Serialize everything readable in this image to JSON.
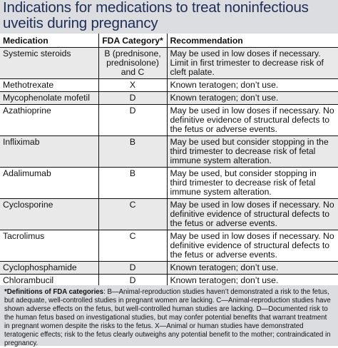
{
  "title": "Indications for medications to treat noninfectious uveitis during pregnancy",
  "table": {
    "headers": [
      "Medication",
      "FDA Category*",
      "Recommendation"
    ],
    "rows": [
      {
        "medication": "Systemic steroids",
        "category": "B (prednisone, prednisolone) and C",
        "recommendation": "May be used in low doses if necessary. Limit in first trimester to decrease risk of cleft palate."
      },
      {
        "medication": "Methotrexate",
        "category": "X",
        "recommendation": "Known teratogen; don’t use."
      },
      {
        "medication": "Mycophenolate mofetil",
        "category": "D",
        "recommendation": "Known teratogen; don’t use."
      },
      {
        "medication": "Azathioprine",
        "category": "D",
        "recommendation": "May be used in low doses if necessary. No definitive evidence of structural defects to the fetus or adverse events."
      },
      {
        "medication": "Infliximab",
        "category": "B",
        "recommendation": "May be used but consider stopping in the third trimester to decrease risk of fetal immune system alteration."
      },
      {
        "medication": "Adalimumab",
        "category": "B",
        "recommendation": "May be used, but consider stopping in third trimester to decrease risk of fetal immune system alteration."
      },
      {
        "medication": "Cyclosporine",
        "category": "C",
        "recommendation": "May be used in low doses if necessary. No definitive evidence of structural defects to the fetus or adverse events."
      },
      {
        "medication": "Tacrolimus",
        "category": "C",
        "recommendation": "May be used in low doses if necessary. No definitive evidence of structural defects to the fetus or adverse events."
      },
      {
        "medication": "Cyclophosphamide",
        "category": "D",
        "recommendation": "Known teratogen; don’t use."
      },
      {
        "medication": "Chlorambucil",
        "category": "D",
        "recommendation": "Known teratogen; don’t use."
      }
    ]
  },
  "footnote": {
    "heading": "*Definitions of FDA categories",
    "text": ": B—Animal-reproduction studies haven’t demonstrated a risk to the fetus, but adequate, well-controlled studies in pregnant women are lacking. C—Animal-reproduction studies have shown adverse effects on the fetus, but well-controlled human studies are lacking. D—Documented risk to the human fetus based on investigational studies, but may confer potential benefits that warrant treatment in pregnant women despite the risks to the fetus. X—Animal or human studies have demonstrated teratogenic effects; risk to the fetus clearly outweighs any potential benefit to the mother; contraindicated in pregnancy."
  }
}
